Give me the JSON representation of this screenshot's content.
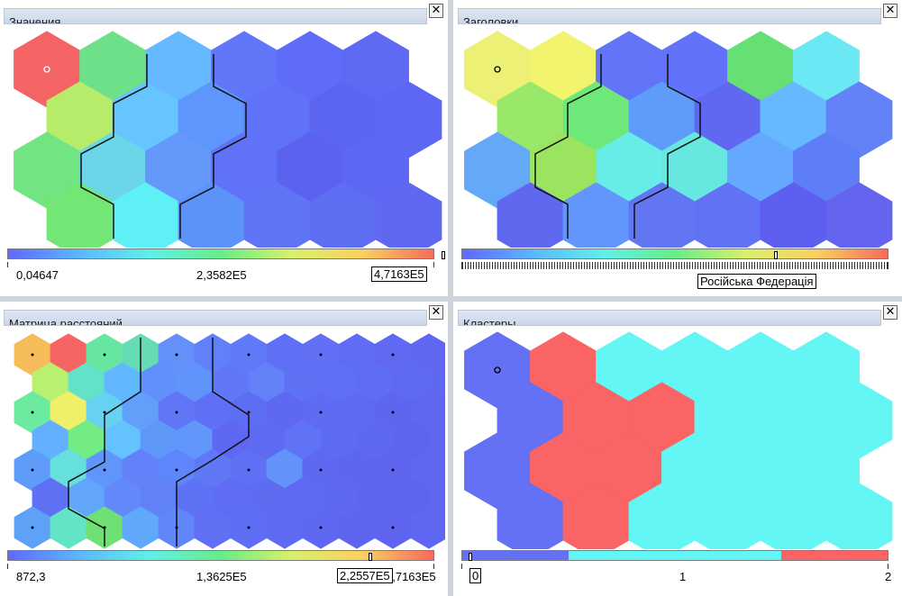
{
  "colors": {
    "divider": "#cfd4dc",
    "cluster_0": "#6471f5",
    "cluster_1": "#fa6464",
    "cluster_2": "#64f5f5",
    "gradient": [
      "#6068ff",
      "#5ab8ff",
      "#5ff0e8",
      "#66ee88",
      "#d8f06a",
      "#fbd060",
      "#f86a5c"
    ]
  },
  "panels": [
    {
      "id": "values",
      "title": "Значения",
      "close_label": "✕",
      "grid_colors": [
        [
          "#f46464",
          "#6ee08a",
          "#66b8ff",
          "#6276fa",
          "#5f6cf7",
          "#5f69f4"
        ],
        [
          "#b6ec6a",
          "#66c4ff",
          "#5e96fb",
          "#6072f8",
          "#5c64f2",
          "#5e66f4"
        ],
        [
          "#73e482",
          "#6bd6e7",
          "#6498fb",
          "#6072f8",
          "#5c62f0",
          "#5e66f4"
        ],
        [
          "#74e676",
          "#5ef0f5",
          "#5c93f8",
          "#6074f6",
          "#5e6ef2",
          "#6068f1"
        ]
      ],
      "scale": {
        "min": "0,04647",
        "mid": "2,3582E5",
        "max": "4,7163E5",
        "selected": "4,7163E5"
      }
    },
    {
      "id": "headers",
      "title": "Заголовки",
      "close_label": "✕",
      "grid_colors": [
        [
          "#ecf074",
          "#f2f46e",
          "#6274f8",
          "#6272fa",
          "#66e072",
          "#6ce8f4"
        ],
        [
          "#9ae86a",
          "#6ee878",
          "#5e9cfa",
          "#6068f2",
          "#66b8ff",
          "#6482f8"
        ],
        [
          "#64a8f8",
          "#9ae460",
          "#68ece8",
          "#66e8e0",
          "#64a8ff",
          "#5e7ef8"
        ],
        [
          "#6068f0",
          "#6296fc",
          "#6276f2",
          "#6272f4",
          "#5e5ef0",
          "#6464f0"
        ]
      ],
      "tooltip": "Російська Федерація"
    },
    {
      "id": "distance",
      "title": "Матрица расстояний",
      "close_label": "✕",
      "grid_colors": [
        [
          "#f7bc5a",
          "#f76464",
          "#66e6a0",
          "#66dcb4",
          "#6490fa",
          "#6280fa",
          "#5e7af8",
          "#6070f6",
          "#6270f6",
          "#5f6cf6",
          "#6168f4",
          "#6068f2"
        ],
        [
          "#b8f070",
          "#64e2c8",
          "#62b8ff",
          "#6290fb",
          "#6094fb",
          "#6078f8",
          "#6482f8",
          "#5f72f6",
          "#6070f6",
          "#5f6df4",
          "#5e6af2",
          "#5e68f2"
        ],
        [
          "#6ceaa0",
          "#eef06a",
          "#66d2f0",
          "#629ffa",
          "#6176f6",
          "#6070f6",
          "#5e6ef4",
          "#5e68f2",
          "#5f6bf4",
          "#5e6af2",
          "#5e66f0",
          "#5e66f2"
        ],
        [
          "#62b0ff",
          "#74ec86",
          "#64c2ff",
          "#6098fa",
          "#6196fb",
          "#5f68f2",
          "#5e6af2",
          "#6072f6",
          "#5e6cf4",
          "#5e68f2",
          "#5e64f0",
          "#5e66f2"
        ],
        [
          "#5f9cfa",
          "#66e0dc",
          "#6096fb",
          "#6182f8",
          "#5e86fa",
          "#6078f6",
          "#6070f4",
          "#6292fa",
          "#5e68f2",
          "#5e66f0",
          "#5e64f0",
          "#5e66f2"
        ],
        [
          "#6070f4",
          "#62a6fc",
          "#6288fa",
          "#6082f6",
          "#5e72f6",
          "#5f6cf4",
          "#5e6cf2",
          "#5e6af2",
          "#5e68f2",
          "#5e66f0",
          "#5e64f0",
          "#5e66f2"
        ],
        [
          "#5ea2f8",
          "#64e4c6",
          "#6ee074",
          "#60a8fc",
          "#6086f8",
          "#5f70f4",
          "#5e6ef4",
          "#5e6af2",
          "#5e68f2",
          "#5e66f0",
          "#5e64f0",
          "#5e66f2"
        ]
      ],
      "scale": {
        "min": "872,3",
        "mid": "1,3625E5",
        "max": "2,7163E5",
        "selected": "2,2557E5"
      }
    },
    {
      "id": "clusters",
      "title": "Кластеры",
      "close_label": "✕",
      "clusters": [
        [
          0,
          1,
          2,
          2,
          2,
          2
        ],
        [
          0,
          1,
          1,
          2,
          2,
          2
        ],
        [
          0,
          1,
          1,
          2,
          2,
          2
        ],
        [
          0,
          1,
          2,
          2,
          2,
          2
        ]
      ],
      "scale": {
        "min": "0",
        "mid": "1",
        "max": "2"
      }
    }
  ]
}
